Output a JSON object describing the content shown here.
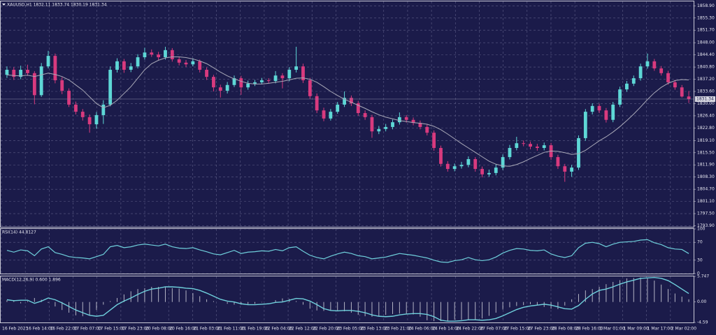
{
  "time_labels": [
    "16 Feb 2023",
    "16 Feb 14:00",
    "16 Feb 22:00",
    "17 Feb 07:00",
    "17 Feb 15:00",
    "17 Feb 23:00",
    "20 Feb 08:00",
    "20 Feb 16:00",
    "21 Feb 03:00",
    "21 Feb 11:00",
    "21 Feb 19:00",
    "22 Feb 04:00",
    "22 Feb 12:00",
    "22 Feb 20:00",
    "23 Feb 05:00",
    "23 Feb 13:00",
    "23 Feb 21:00",
    "24 Feb 06:00",
    "24 Feb 14:00",
    "24 Feb 22:00",
    "27 Feb 07:00",
    "27 Feb 15:00",
    "27 Feb 23:00",
    "28 Feb 08:00",
    "28 Feb 16:00",
    "1 Mar 01:00",
    "1 Mar 09:00",
    "1 Mar 17:00",
    "2 Mar 02:00"
  ],
  "chart_data": [
    {
      "type": "candlestick",
      "title": "XAUUSD,H1  1832.11 1833.74 1830.19 1831.34",
      "up_color": "#5ed7d6",
      "down_color": "#d83a7e",
      "ma_color": "#a9a9b8",
      "grid": true,
      "ylim": [
        1793.6,
        1860.2
      ],
      "yticks": [
        {
          "value": 1793.9,
          "label": "1793.90"
        },
        {
          "value": 1797.5,
          "label": "1797.50"
        },
        {
          "value": 1801.1,
          "label": "1801.10"
        },
        {
          "value": 1804.7,
          "label": "1804.70"
        },
        {
          "value": 1808.3,
          "label": "1808.30"
        },
        {
          "value": 1811.9,
          "label": "1811.90"
        },
        {
          "value": 1815.5,
          "label": "1815.50"
        },
        {
          "value": 1819.1,
          "label": "1819.10"
        },
        {
          "value": 1822.8,
          "label": "1822.80"
        },
        {
          "value": 1826.4,
          "label": "1826.40"
        },
        {
          "value": 1830.0,
          "label": "1830.00"
        },
        {
          "value": 1833.6,
          "label": "1833.60"
        },
        {
          "value": 1837.2,
          "label": "1837.20"
        },
        {
          "value": 1840.8,
          "label": "1840.80"
        },
        {
          "value": 1844.4,
          "label": "1844.40"
        },
        {
          "value": 1848.0,
          "label": "1848.00"
        },
        {
          "value": 1851.7,
          "label": "1851.70"
        },
        {
          "value": 1855.3,
          "label": "1855.30"
        },
        {
          "value": 1858.9,
          "label": "1858.90"
        }
      ],
      "candles": [
        [
          1838.5,
          1841.0,
          1837.6,
          1840.0
        ],
        [
          1840.0,
          1840.8,
          1837.0,
          1837.9
        ],
        [
          1837.9,
          1841.2,
          1837.2,
          1840.0
        ],
        [
          1840.0,
          1841.5,
          1838.2,
          1839.0
        ],
        [
          1839.0,
          1839.6,
          1829.8,
          1832.5
        ],
        [
          1832.5,
          1842.0,
          1832.0,
          1841.0
        ],
        [
          1841.0,
          1845.6,
          1840.4,
          1844.1
        ],
        [
          1844.1,
          1844.8,
          1836.0,
          1836.9
        ],
        [
          1836.9,
          1837.8,
          1832.8,
          1833.8
        ],
        [
          1833.8,
          1834.5,
          1829.0,
          1829.7
        ],
        [
          1829.7,
          1830.6,
          1826.8,
          1827.6
        ],
        [
          1827.6,
          1828.4,
          1825.0,
          1826.0
        ],
        [
          1826.0,
          1826.8,
          1821.4,
          1823.9
        ],
        [
          1823.9,
          1827.5,
          1822.6,
          1826.6
        ],
        [
          1826.6,
          1831.0,
          1824.0,
          1829.7
        ],
        [
          1829.7,
          1841.0,
          1829.2,
          1840.0
        ],
        [
          1840.0,
          1843.4,
          1839.2,
          1842.5
        ],
        [
          1842.5,
          1843.2,
          1839.1,
          1840.0
        ],
        [
          1840.0,
          1842.0,
          1839.3,
          1841.0
        ],
        [
          1841.0,
          1844.6,
          1840.4,
          1843.7
        ],
        [
          1843.7,
          1846.5,
          1843.0,
          1845.1
        ],
        [
          1845.1,
          1846.0,
          1843.8,
          1844.5
        ],
        [
          1844.5,
          1845.3,
          1842.8,
          1843.7
        ],
        [
          1843.7,
          1846.8,
          1843.0,
          1845.8
        ],
        [
          1845.8,
          1846.4,
          1842.4,
          1843.1
        ],
        [
          1843.1,
          1843.9,
          1841.3,
          1842.1
        ],
        [
          1842.1,
          1842.9,
          1840.8,
          1841.6
        ],
        [
          1841.6,
          1843.4,
          1841.0,
          1842.5
        ],
        [
          1842.5,
          1843.0,
          1839.2,
          1840.0
        ],
        [
          1840.0,
          1840.7,
          1837.0,
          1837.9
        ],
        [
          1837.9,
          1838.5,
          1833.6,
          1834.8
        ],
        [
          1834.8,
          1835.6,
          1831.8,
          1833.8
        ],
        [
          1833.8,
          1836.4,
          1833.0,
          1835.5
        ],
        [
          1835.5,
          1838.3,
          1834.9,
          1837.5
        ],
        [
          1837.5,
          1838.2,
          1832.6,
          1834.8
        ],
        [
          1834.8,
          1836.8,
          1834.1,
          1835.9
        ],
        [
          1835.9,
          1837.0,
          1835.2,
          1836.3
        ],
        [
          1836.3,
          1837.6,
          1835.7,
          1836.9
        ],
        [
          1836.9,
          1837.5,
          1836.0,
          1836.7
        ],
        [
          1836.7,
          1839.6,
          1836.0,
          1838.3
        ],
        [
          1838.3,
          1839.0,
          1834.5,
          1837.5
        ],
        [
          1837.5,
          1840.8,
          1836.6,
          1840.0
        ],
        [
          1840.0,
          1846.8,
          1839.2,
          1841.0
        ],
        [
          1841.0,
          1841.8,
          1836.1,
          1836.9
        ],
        [
          1836.9,
          1837.6,
          1831.4,
          1832.2
        ],
        [
          1832.2,
          1833.0,
          1827.2,
          1828.0
        ],
        [
          1828.0,
          1828.8,
          1824.8,
          1825.6
        ],
        [
          1825.6,
          1828.4,
          1825.0,
          1827.6
        ],
        [
          1827.6,
          1830.5,
          1827.0,
          1829.7
        ],
        [
          1829.7,
          1833.6,
          1829.0,
          1831.7
        ],
        [
          1831.7,
          1832.4,
          1829.3,
          1830.1
        ],
        [
          1830.1,
          1830.8,
          1826.4,
          1827.2
        ],
        [
          1827.2,
          1828.0,
          1825.2,
          1826.0
        ],
        [
          1826.0,
          1826.7,
          1819.9,
          1821.8
        ],
        [
          1821.8,
          1823.4,
          1821.0,
          1822.5
        ],
        [
          1822.5,
          1824.0,
          1821.8,
          1823.1
        ],
        [
          1823.1,
          1825.3,
          1822.4,
          1824.5
        ],
        [
          1824.5,
          1827.4,
          1823.8,
          1826.0
        ],
        [
          1826.0,
          1826.6,
          1824.4,
          1825.2
        ],
        [
          1825.2,
          1825.9,
          1823.6,
          1824.3
        ],
        [
          1824.3,
          1825.0,
          1822.4,
          1823.1
        ],
        [
          1823.1,
          1823.8,
          1820.6,
          1821.4
        ],
        [
          1821.4,
          1822.1,
          1816.1,
          1816.9
        ],
        [
          1816.9,
          1817.6,
          1811.4,
          1812.2
        ],
        [
          1812.2,
          1813.0,
          1809.9,
          1810.7
        ],
        [
          1810.7,
          1812.3,
          1810.0,
          1811.5
        ],
        [
          1811.5,
          1812.8,
          1810.8,
          1811.9
        ],
        [
          1811.9,
          1814.4,
          1811.2,
          1813.6
        ],
        [
          1813.6,
          1814.2,
          1809.9,
          1810.7
        ],
        [
          1810.7,
          1811.4,
          1808.2,
          1809.1
        ],
        [
          1809.1,
          1810.5,
          1808.4,
          1809.5
        ],
        [
          1809.5,
          1812.0,
          1808.8,
          1811.1
        ],
        [
          1811.1,
          1815.0,
          1810.4,
          1814.2
        ],
        [
          1814.2,
          1817.8,
          1813.5,
          1816.9
        ],
        [
          1816.9,
          1820.2,
          1816.2,
          1818.3
        ],
        [
          1818.3,
          1819.1,
          1817.4,
          1818.1
        ],
        [
          1818.1,
          1818.8,
          1816.5,
          1817.3
        ],
        [
          1817.3,
          1818.1,
          1816.1,
          1816.9
        ],
        [
          1816.9,
          1818.5,
          1816.2,
          1817.7
        ],
        [
          1817.7,
          1818.4,
          1813.4,
          1814.2
        ],
        [
          1814.2,
          1814.9,
          1810.7,
          1811.5
        ],
        [
          1811.5,
          1812.2,
          1806.9,
          1809.9
        ],
        [
          1809.9,
          1811.9,
          1808.4,
          1811.1
        ],
        [
          1811.1,
          1820.6,
          1810.4,
          1819.8
        ],
        [
          1819.8,
          1828.4,
          1819.0,
          1827.6
        ],
        [
          1827.6,
          1830.1,
          1826.8,
          1829.3
        ],
        [
          1829.3,
          1830.0,
          1827.2,
          1828.0
        ],
        [
          1828.0,
          1828.7,
          1824.4,
          1825.2
        ],
        [
          1825.2,
          1830.5,
          1824.5,
          1829.7
        ],
        [
          1829.7,
          1835.0,
          1829.0,
          1834.2
        ],
        [
          1834.2,
          1836.7,
          1833.5,
          1835.9
        ],
        [
          1835.9,
          1838.3,
          1835.2,
          1837.5
        ],
        [
          1837.5,
          1841.8,
          1836.8,
          1841.0
        ],
        [
          1841.0,
          1844.8,
          1840.3,
          1842.5
        ],
        [
          1842.5,
          1843.2,
          1839.7,
          1840.4
        ],
        [
          1840.4,
          1841.1,
          1838.3,
          1839.0
        ],
        [
          1839.0,
          1839.7,
          1835.6,
          1836.3
        ],
        [
          1836.3,
          1837.0,
          1834.1,
          1834.8
        ],
        [
          1834.8,
          1835.5,
          1831.8,
          1832.1
        ],
        [
          1832.11,
          1833.74,
          1830.19,
          1831.34
        ]
      ],
      "ma_values": [
        1838.5,
        1838.3,
        1838.2,
        1838.4,
        1838.0,
        1838.5,
        1839.0,
        1838.6,
        1838.0,
        1837.0,
        1835.5,
        1834.0,
        1832.0,
        1830.0,
        1828.8,
        1829.5,
        1831.0,
        1833.0,
        1835.0,
        1837.5,
        1840.0,
        1841.8,
        1842.8,
        1843.5,
        1843.8,
        1843.8,
        1843.6,
        1843.2,
        1842.6,
        1841.8,
        1840.6,
        1839.3,
        1838.2,
        1837.3,
        1836.6,
        1836.0,
        1835.8,
        1835.8,
        1836.0,
        1836.3,
        1836.6,
        1837.0,
        1837.5,
        1837.6,
        1837.2,
        1836.3,
        1835.0,
        1833.6,
        1832.4,
        1831.3,
        1830.4,
        1829.5,
        1828.6,
        1827.6,
        1826.7,
        1826.0,
        1825.5,
        1825.0,
        1824.7,
        1824.4,
        1824.2,
        1823.9,
        1823.3,
        1822.3,
        1821.0,
        1819.6,
        1818.2,
        1816.9,
        1815.6,
        1814.3,
        1813.0,
        1812.1,
        1811.6,
        1811.5,
        1812.0,
        1812.8,
        1813.8,
        1814.7,
        1815.6,
        1816.0,
        1815.9,
        1815.5,
        1815.0,
        1815.2,
        1816.2,
        1817.6,
        1819.0,
        1820.2,
        1821.6,
        1823.2,
        1825.0,
        1826.9,
        1829.0,
        1831.2,
        1833.2,
        1834.8,
        1836.0,
        1836.8,
        1837.1,
        1837.0
      ]
    },
    {
      "type": "line",
      "title": "RSI(14) 44.8127",
      "color": "#6fd0dc",
      "grid": true,
      "ylim": [
        0,
        100
      ],
      "yticks": [
        0,
        30,
        70,
        100
      ],
      "values": [
        52,
        48,
        53,
        51,
        40,
        55,
        60,
        47,
        43,
        38,
        36,
        35,
        33,
        38,
        43,
        60,
        63,
        58,
        60,
        64,
        66,
        64,
        62,
        66,
        60,
        57,
        56,
        58,
        53,
        49,
        44,
        42,
        47,
        52,
        45,
        48,
        49,
        51,
        50,
        54,
        51,
        58,
        60,
        50,
        41,
        36,
        33,
        39,
        44,
        48,
        45,
        40,
        38,
        33,
        35,
        37,
        41,
        45,
        43,
        41,
        38,
        35,
        30,
        26,
        25,
        29,
        31,
        36,
        31,
        29,
        31,
        37,
        46,
        52,
        56,
        55,
        52,
        51,
        53,
        44,
        39,
        36,
        40,
        58,
        68,
        70,
        67,
        60,
        66,
        70,
        71,
        72,
        75,
        76,
        69,
        65,
        58,
        55,
        54,
        44.8127
      ]
    },
    {
      "type": "macd",
      "title": "MACD(12,26,9) 0.600 1.896",
      "color": "#6fd0dc",
      "hist_color": "#b4b4c4",
      "ylim": [
        -4.59,
        5.747
      ],
      "yticks": [
        -4.59,
        {
          "value": 0,
          "label": "0.00"
        },
        5.747
      ],
      "values": [
        0.4,
        0.4,
        -0.3,
        0.2,
        0.9,
        0.5,
        -0.2,
        -1.0,
        -1.8,
        -2.4,
        -3.0,
        -3.2,
        -3.0,
        -1.8,
        -0.6,
        0.2,
        0.9,
        1.7,
        2.4,
        2.9,
        3.1,
        3.4,
        3.4,
        3.3,
        3.1,
        3.0,
        2.6,
        2.0,
        1.3,
        0.6,
        0.2,
        0.0,
        -0.4,
        -0.6,
        -0.6,
        -0.5,
        -0.4,
        -0.1,
        0.0,
        0.4,
        0.8,
        0.7,
        0.2,
        -0.6,
        -1.5,
        -1.9,
        -2.0,
        -1.9,
        -1.9,
        -2.1,
        -2.4,
        -2.9,
        -3.2,
        -3.3,
        -3.2,
        -2.9,
        -2.7,
        -2.6,
        -2.6,
        -2.8,
        -3.3,
        -4.1,
        -4.3,
        -4.3,
        -4.2,
        -4.0,
        -4.0,
        -4.1,
        -4.0,
        -3.7,
        -3.1,
        -2.4,
        -1.7,
        -1.2,
        -0.9,
        -0.7,
        -0.5,
        -0.7,
        -1.1,
        -1.5,
        -1.6,
        -0.8,
        0.6,
        1.8,
        2.6,
        2.9,
        3.4,
        4.0,
        4.5,
        4.9,
        5.3,
        5.4,
        5.5,
        5.3,
        4.8,
        3.9,
        2.9,
        1.9,
        1.2,
        0.6
      ],
      "signal": [
        0.5,
        0.3,
        0.4,
        0.4,
        -0.3,
        0.2,
        0.9,
        0.5,
        -0.2,
        -1.0,
        -1.8,
        -2.4,
        -3.0,
        -3.2,
        -3.0,
        -1.8,
        -0.6,
        0.2,
        0.9,
        1.7,
        2.4,
        2.9,
        3.1,
        3.4,
        3.4,
        3.3,
        3.1,
        3.0,
        2.6,
        2.0,
        1.3,
        0.6,
        0.2,
        0.0,
        -0.4,
        -0.6,
        -0.6,
        -0.5,
        -0.4,
        -0.1,
        0.0,
        0.4,
        0.8,
        0.7,
        0.2,
        -0.6,
        -1.5,
        -1.9,
        -2.0,
        -1.9,
        -1.9,
        -2.1,
        -2.4,
        -2.9,
        -3.2,
        -3.3,
        -3.2,
        -2.9,
        -2.7,
        -2.6,
        -2.6,
        -2.8,
        -3.3,
        -4.1,
        -4.3,
        -4.3,
        -4.2,
        -4.0,
        -4.0,
        -4.1,
        -4.0,
        -3.7,
        -3.1,
        -2.4,
        -1.7,
        -1.2,
        -0.9,
        -0.7,
        -0.5,
        -0.7,
        -1.1,
        -1.5,
        -1.6,
        -0.8,
        0.6,
        1.8,
        2.6,
        2.9,
        3.4,
        4.0,
        4.5,
        4.9,
        5.3,
        5.4,
        5.5,
        5.3,
        4.8,
        3.9,
        2.9,
        1.896
      ]
    }
  ]
}
